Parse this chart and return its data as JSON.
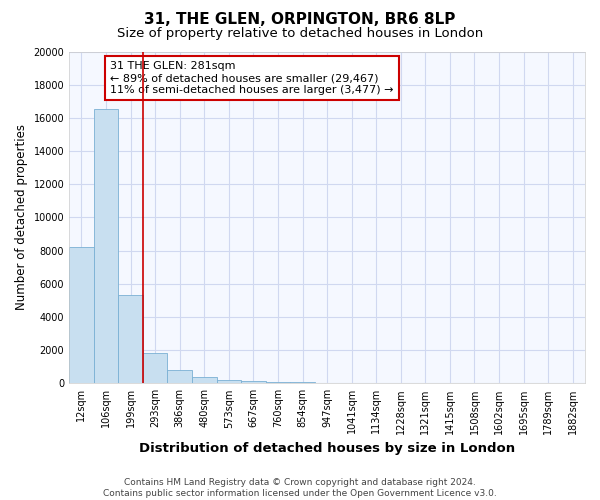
{
  "title": "31, THE GLEN, ORPINGTON, BR6 8LP",
  "subtitle": "Size of property relative to detached houses in London",
  "xlabel": "Distribution of detached houses by size in London",
  "ylabel": "Number of detached properties",
  "bar_color": "#c8dff0",
  "bar_edge_color": "#7ab0d4",
  "background_color": "#ffffff",
  "plot_bg_color": "#f5f8ff",
  "grid_color": "#d0d8f0",
  "vline_color": "#cc0000",
  "vline_x": 2.5,
  "annotation_text": "31 THE GLEN: 281sqm\n← 89% of detached houses are smaller (29,467)\n11% of semi-detached houses are larger (3,477) →",
  "annotation_box_color": "white",
  "annotation_box_edge": "#cc0000",
  "categories": [
    "12sqm",
    "106sqm",
    "199sqm",
    "293sqm",
    "386sqm",
    "480sqm",
    "573sqm",
    "667sqm",
    "760sqm",
    "854sqm",
    "947sqm",
    "1041sqm",
    "1134sqm",
    "1228sqm",
    "1321sqm",
    "1415sqm",
    "1508sqm",
    "1602sqm",
    "1695sqm",
    "1789sqm",
    "1882sqm"
  ],
  "values": [
    8200,
    16550,
    5300,
    1850,
    800,
    350,
    200,
    150,
    100,
    50,
    0,
    0,
    0,
    0,
    0,
    0,
    0,
    0,
    0,
    0,
    0
  ],
  "ylim": [
    0,
    20000
  ],
  "yticks": [
    0,
    2000,
    4000,
    6000,
    8000,
    10000,
    12000,
    14000,
    16000,
    18000,
    20000
  ],
  "footer": "Contains HM Land Registry data © Crown copyright and database right 2024.\nContains public sector information licensed under the Open Government Licence v3.0.",
  "title_fontsize": 11,
  "subtitle_fontsize": 9.5,
  "xlabel_fontsize": 9.5,
  "ylabel_fontsize": 8.5,
  "tick_fontsize": 7,
  "annotation_fontsize": 8,
  "footer_fontsize": 6.5
}
